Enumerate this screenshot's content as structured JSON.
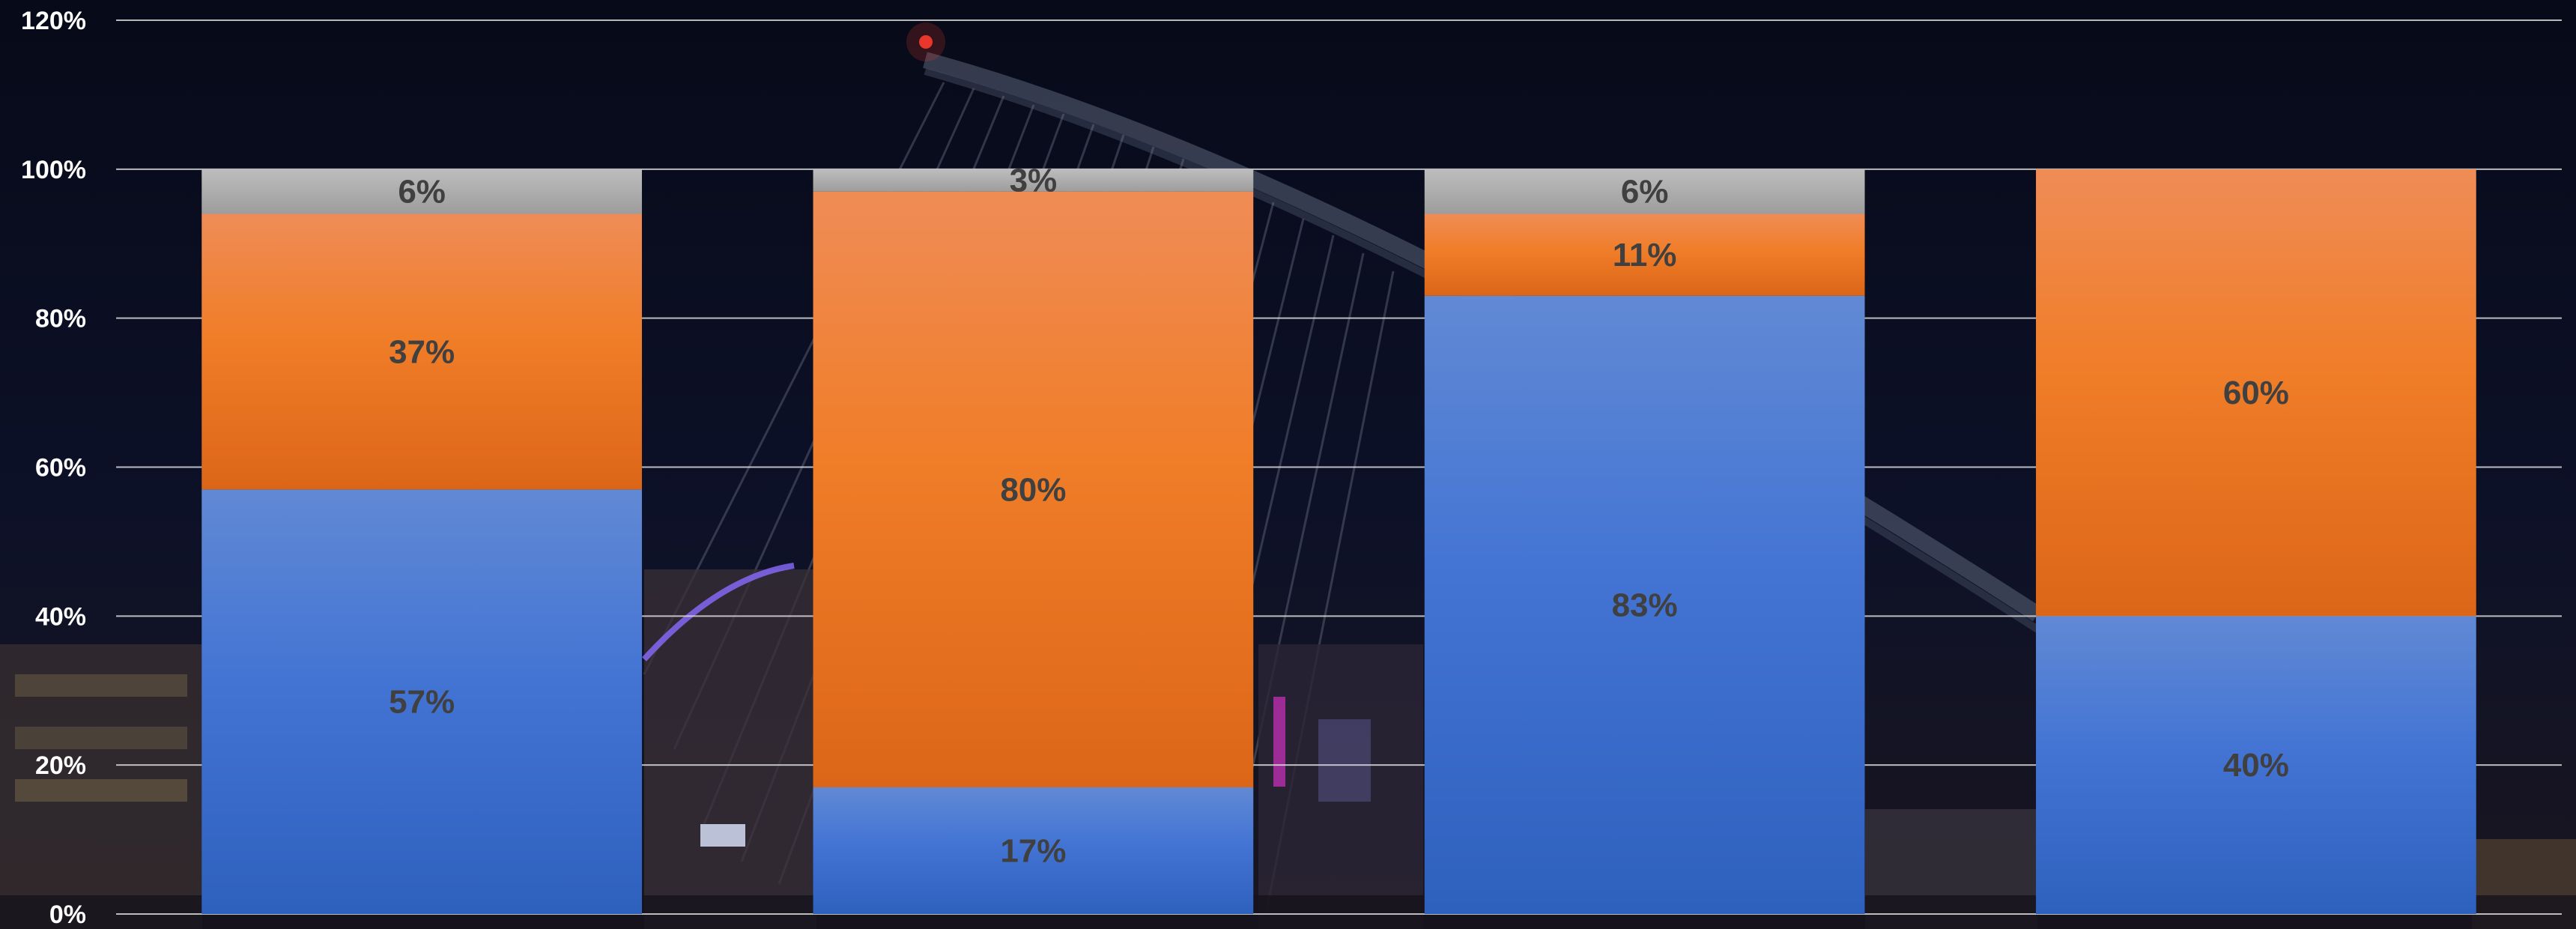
{
  "chart_data": {
    "type": "bar",
    "stacked": true,
    "categories": [
      "",
      "",
      "",
      ""
    ],
    "series": [
      {
        "color": "#3f70d0",
        "values": [
          57,
          17,
          83,
          40
        ],
        "labels": [
          "57%",
          "17%",
          "83%",
          "40%"
        ]
      },
      {
        "color": "#ee7a25",
        "values": [
          37,
          80,
          11,
          60
        ],
        "labels": [
          "37%",
          "80%",
          "11%",
          "60%"
        ]
      },
      {
        "color": "#a6a6a6",
        "values": [
          6,
          3,
          6,
          0
        ],
        "labels": [
          "6%",
          "3%",
          "6%",
          ""
        ]
      }
    ],
    "ylim": [
      0,
      120
    ],
    "yticks": [
      "0%",
      "20%",
      "40%",
      "60%",
      "80%",
      "100%",
      "120%"
    ],
    "grid": true,
    "legend": "none",
    "background": "dark night photo of a cable-stayed bridge"
  }
}
